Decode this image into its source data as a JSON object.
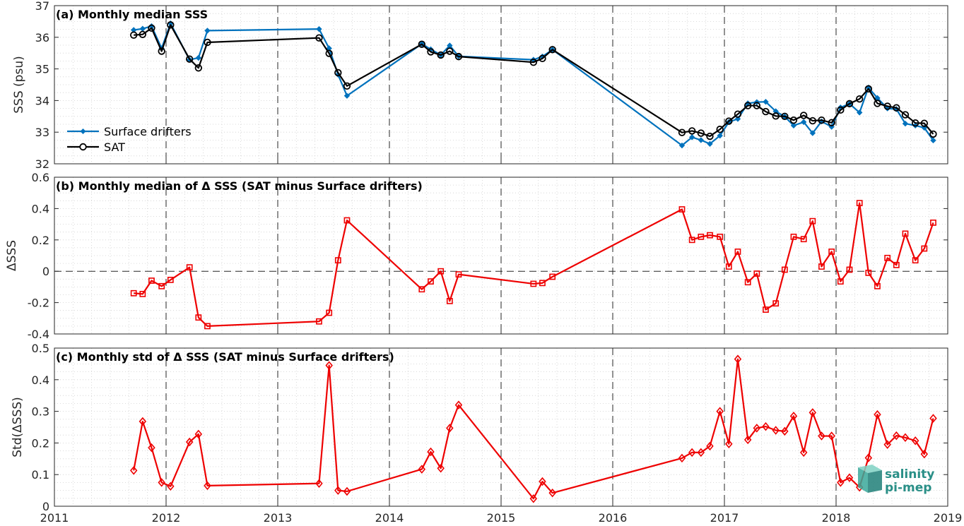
{
  "chart_data": [
    {
      "type": "line",
      "title": "(a) Monthly median SSS",
      "ylabel": "SSS (psu)",
      "xlim": [
        2011,
        2019
      ],
      "ylim": [
        32,
        37
      ],
      "yticks": [
        32,
        33,
        34,
        35,
        36,
        37
      ],
      "grid": "minor-dotted",
      "legend_position": "lower-left",
      "series": [
        {
          "name": "Surface drifters",
          "color": "#0072bd",
          "marker": "filled-diamond",
          "x": [
            2011.71,
            2011.79,
            2011.87,
            2011.96,
            2012.04,
            2012.21,
            2012.29,
            2012.37,
            2013.37,
            2013.46,
            2013.54,
            2013.62,
            2014.29,
            2014.37,
            2014.46,
            2014.54,
            2014.62,
            2015.29,
            2015.37,
            2015.46,
            2016.62,
            2016.71,
            2016.79,
            2016.87,
            2016.96,
            2017.04,
            2017.12,
            2017.21,
            2017.29,
            2017.37,
            2017.46,
            2017.54,
            2017.62,
            2017.71,
            2017.79,
            2017.87,
            2017.96,
            2018.04,
            2018.12,
            2018.21,
            2018.29,
            2018.37,
            2018.46,
            2018.54,
            2018.62,
            2018.71,
            2018.79,
            2018.87
          ],
          "y": [
            36.23,
            36.27,
            36.35,
            35.65,
            36.44,
            35.29,
            35.35,
            36.21,
            36.26,
            35.65,
            34.82,
            34.15,
            35.79,
            35.62,
            35.44,
            35.74,
            35.4,
            35.29,
            35.39,
            35.61,
            32.58,
            32.84,
            32.75,
            32.63,
            32.89,
            33.32,
            33.42,
            33.91,
            33.95,
            33.96,
            33.66,
            33.49,
            33.21,
            33.32,
            32.97,
            33.34,
            33.17,
            33.78,
            33.9,
            33.62,
            34.41,
            34.08,
            33.75,
            33.73,
            33.27,
            33.21,
            33.14,
            32.74
          ]
        },
        {
          "name": "SAT",
          "color": "#000000",
          "marker": "open-circle",
          "x": [
            2011.71,
            2011.79,
            2011.87,
            2011.96,
            2012.04,
            2012.21,
            2012.29,
            2012.37,
            2013.37,
            2013.46,
            2013.54,
            2013.62,
            2014.29,
            2014.37,
            2014.46,
            2014.54,
            2014.62,
            2015.29,
            2015.37,
            2015.46,
            2016.62,
            2016.71,
            2016.79,
            2016.87,
            2016.96,
            2017.04,
            2017.12,
            2017.21,
            2017.29,
            2017.37,
            2017.46,
            2017.54,
            2017.62,
            2017.71,
            2017.79,
            2017.87,
            2017.96,
            2018.04,
            2018.12,
            2018.21,
            2018.29,
            2018.37,
            2018.46,
            2018.54,
            2018.62,
            2018.71,
            2018.79,
            2018.87
          ],
          "y": [
            36.07,
            36.09,
            36.29,
            35.56,
            36.39,
            35.31,
            35.03,
            35.84,
            35.98,
            35.49,
            34.88,
            34.46,
            35.78,
            35.54,
            35.44,
            35.56,
            35.39,
            35.21,
            35.33,
            35.61,
            32.99,
            33.04,
            32.97,
            32.87,
            33.09,
            33.35,
            33.57,
            33.84,
            33.84,
            33.65,
            33.51,
            33.5,
            33.38,
            33.53,
            33.36,
            33.38,
            33.3,
            33.7,
            33.9,
            34.05,
            34.37,
            33.91,
            33.82,
            33.77,
            33.55,
            33.29,
            33.28,
            32.94
          ]
        }
      ]
    },
    {
      "type": "line",
      "title": "(b) Monthly median of Δ SSS (SAT minus Surface drifters)",
      "ylabel": "ΔSSS",
      "xlim": [
        2011,
        2019
      ],
      "ylim": [
        -0.4,
        0.6
      ],
      "yticks": [
        -0.4,
        -0.2,
        0,
        0.2,
        0.4,
        0.6
      ],
      "ytick_labels": [
        "-0.4",
        "-0.2",
        "0",
        "0.2",
        "0.4",
        "0.6"
      ],
      "zero_line": "dashed",
      "series": [
        {
          "color": "#ee0000",
          "marker": "open-square",
          "x": [
            2011.71,
            2011.79,
            2011.87,
            2011.96,
            2012.04,
            2012.21,
            2012.29,
            2012.37,
            2013.37,
            2013.46,
            2013.54,
            2013.62,
            2014.29,
            2014.37,
            2014.46,
            2014.54,
            2014.62,
            2015.29,
            2015.37,
            2015.46,
            2016.62,
            2016.71,
            2016.79,
            2016.87,
            2016.96,
            2017.04,
            2017.12,
            2017.21,
            2017.29,
            2017.37,
            2017.46,
            2017.54,
            2017.62,
            2017.71,
            2017.79,
            2017.87,
            2017.96,
            2018.04,
            2018.12,
            2018.21,
            2018.29,
            2018.37,
            2018.46,
            2018.54,
            2018.62,
            2018.71,
            2018.79,
            2018.87
          ],
          "y": [
            -0.14,
            -0.145,
            -0.06,
            -0.095,
            -0.055,
            0.025,
            -0.295,
            -0.35,
            -0.32,
            -0.265,
            0.07,
            0.325,
            -0.115,
            -0.065,
            0.0,
            -0.19,
            -0.02,
            -0.08,
            -0.075,
            -0.035,
            0.395,
            0.2,
            0.22,
            0.23,
            0.22,
            0.03,
            0.125,
            -0.07,
            -0.015,
            -0.245,
            -0.205,
            0.01,
            0.22,
            0.205,
            0.32,
            0.03,
            0.125,
            -0.065,
            0.01,
            0.435,
            -0.01,
            -0.095,
            0.085,
            0.04,
            0.24,
            0.07,
            0.145,
            0.31
          ]
        }
      ]
    },
    {
      "type": "line",
      "title": "(c) Monthly std of Δ SSS (SAT minus Surface drifters)",
      "ylabel": "Std(ΔSSS)",
      "xlim": [
        2011,
        2019
      ],
      "ylim": [
        0,
        0.5
      ],
      "yticks": [
        0,
        0.1,
        0.2,
        0.3,
        0.4,
        0.5
      ],
      "ytick_labels": [
        "0",
        "0.1",
        "0.2",
        "0.3",
        "0.4",
        "0.5"
      ],
      "xticks": [
        2011,
        2012,
        2013,
        2014,
        2015,
        2016,
        2017,
        2018,
        2019
      ],
      "series": [
        {
          "color": "#ee0000",
          "marker": "open-diamond",
          "x": [
            2011.71,
            2011.79,
            2011.87,
            2011.96,
            2012.04,
            2012.21,
            2012.29,
            2012.37,
            2013.37,
            2013.46,
            2013.54,
            2013.62,
            2014.29,
            2014.37,
            2014.46,
            2014.54,
            2014.62,
            2015.29,
            2015.37,
            2015.46,
            2016.62,
            2016.71,
            2016.79,
            2016.87,
            2016.96,
            2017.04,
            2017.12,
            2017.21,
            2017.29,
            2017.37,
            2017.46,
            2017.54,
            2017.62,
            2017.71,
            2017.79,
            2017.87,
            2017.96,
            2018.04,
            2018.12,
            2018.21,
            2018.29,
            2018.37,
            2018.46,
            2018.54,
            2018.62,
            2018.71,
            2018.79,
            2018.87
          ],
          "y": [
            0.113,
            0.268,
            0.185,
            0.075,
            0.063,
            0.203,
            0.228,
            0.065,
            0.072,
            0.445,
            0.05,
            0.047,
            0.117,
            0.172,
            0.12,
            0.247,
            0.32,
            0.024,
            0.078,
            0.042,
            0.152,
            0.17,
            0.17,
            0.19,
            0.3,
            0.197,
            0.465,
            0.21,
            0.247,
            0.252,
            0.24,
            0.237,
            0.285,
            0.17,
            0.296,
            0.222,
            0.222,
            0.075,
            0.09,
            0.06,
            0.153,
            0.29,
            0.195,
            0.223,
            0.217,
            0.207,
            0.165,
            0.278
          ]
        }
      ]
    }
  ],
  "logo": {
    "line1": "salinity",
    "line2": "pi-mep",
    "color": "#2a8f87"
  }
}
